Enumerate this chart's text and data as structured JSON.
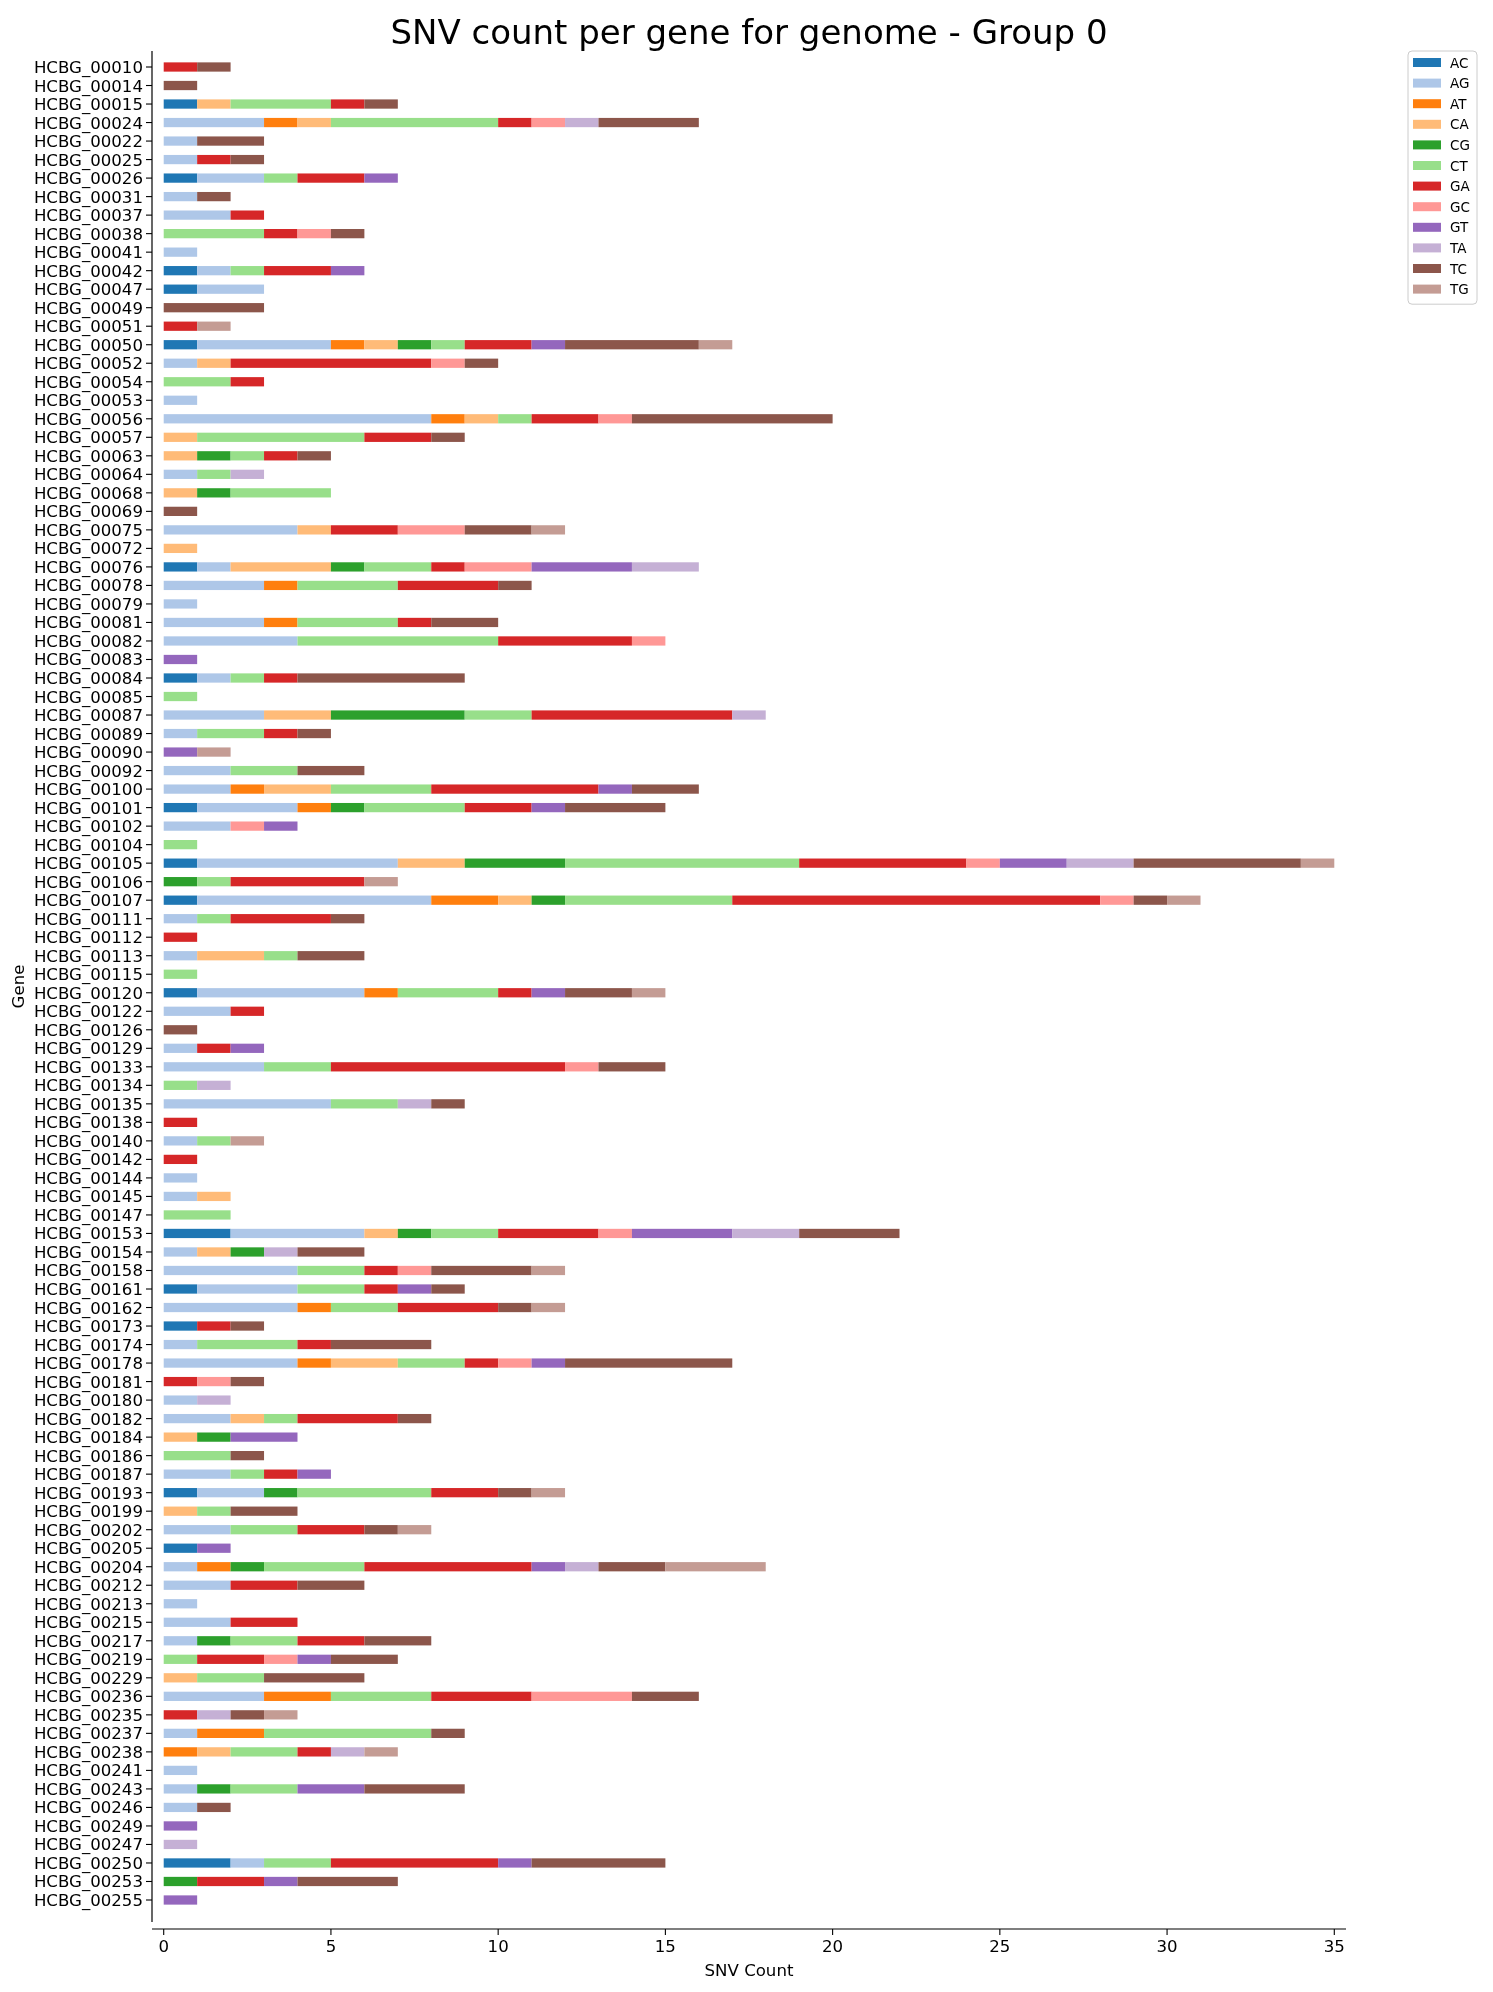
{
  "chart_data": {
    "type": "bar",
    "orientation": "horizontal",
    "stacked": true,
    "title": "SNV count per gene for genome - Group 0",
    "xlabel": "SNV Count",
    "ylabel": "Gene",
    "legend": "top right",
    "xlim": [
      -0.35,
      35.35
    ],
    "xticks": [
      0,
      5,
      10,
      15,
      20,
      25,
      30,
      35
    ],
    "categories": [
      "HCBG_00010",
      "HCBG_00014",
      "HCBG_00015",
      "HCBG_00024",
      "HCBG_00022",
      "HCBG_00025",
      "HCBG_00026",
      "HCBG_00031",
      "HCBG_00037",
      "HCBG_00038",
      "HCBG_00041",
      "HCBG_00042",
      "HCBG_00047",
      "HCBG_00049",
      "HCBG_00051",
      "HCBG_00050",
      "HCBG_00052",
      "HCBG_00054",
      "HCBG_00053",
      "HCBG_00056",
      "HCBG_00057",
      "HCBG_00063",
      "HCBG_00064",
      "HCBG_00068",
      "HCBG_00069",
      "HCBG_00075",
      "HCBG_00072",
      "HCBG_00076",
      "HCBG_00078",
      "HCBG_00079",
      "HCBG_00081",
      "HCBG_00082",
      "HCBG_00083",
      "HCBG_00084",
      "HCBG_00085",
      "HCBG_00087",
      "HCBG_00089",
      "HCBG_00090",
      "HCBG_00092",
      "HCBG_00100",
      "HCBG_00101",
      "HCBG_00102",
      "HCBG_00104",
      "HCBG_00105",
      "HCBG_00106",
      "HCBG_00107",
      "HCBG_00111",
      "HCBG_00112",
      "HCBG_00113",
      "HCBG_00115",
      "HCBG_00120",
      "HCBG_00122",
      "HCBG_00126",
      "HCBG_00129",
      "HCBG_00133",
      "HCBG_00134",
      "HCBG_00135",
      "HCBG_00138",
      "HCBG_00140",
      "HCBG_00142",
      "HCBG_00144",
      "HCBG_00145",
      "HCBG_00147",
      "HCBG_00153",
      "HCBG_00154",
      "HCBG_00158",
      "HCBG_00161",
      "HCBG_00162",
      "HCBG_00173",
      "HCBG_00174",
      "HCBG_00178",
      "HCBG_00181",
      "HCBG_00180",
      "HCBG_00182",
      "HCBG_00184",
      "HCBG_00186",
      "HCBG_00187",
      "HCBG_00193",
      "HCBG_00199",
      "HCBG_00202",
      "HCBG_00205",
      "HCBG_00204",
      "HCBG_00212",
      "HCBG_00213",
      "HCBG_00215",
      "HCBG_00217",
      "HCBG_00219",
      "HCBG_00229",
      "HCBG_00236",
      "HCBG_00235",
      "HCBG_00237",
      "HCBG_00238",
      "HCBG_00241",
      "HCBG_00243",
      "HCBG_00246",
      "HCBG_00249",
      "HCBG_00247",
      "HCBG_00250",
      "HCBG_00253",
      "HCBG_00255"
    ],
    "series": [
      {
        "name": "AC",
        "color": "#1f77b4",
        "values": [
          0,
          0,
          1,
          0,
          0,
          0,
          1,
          0,
          0,
          0,
          0,
          1,
          1,
          0,
          0,
          1,
          0,
          0,
          0,
          0,
          0,
          0,
          0,
          0,
          0,
          0,
          0,
          1,
          0,
          0,
          0,
          0,
          0,
          1,
          0,
          0,
          0,
          0,
          0,
          0,
          1,
          0,
          0,
          1,
          0,
          1,
          0,
          0,
          0,
          0,
          1,
          0,
          0,
          0,
          0,
          0,
          0,
          0,
          0,
          0,
          0,
          0,
          0,
          2,
          0,
          0,
          1,
          0,
          1,
          0,
          0,
          0,
          0,
          0,
          0,
          0,
          0,
          1,
          0,
          0,
          1,
          0,
          0,
          0,
          0,
          0,
          0,
          0,
          0,
          0,
          0,
          0,
          0,
          0,
          0,
          0,
          0,
          2,
          0,
          0
        ]
      },
      {
        "name": "AG",
        "color": "#aec7e8",
        "values": [
          0,
          0,
          0,
          3,
          1,
          1,
          2,
          1,
          2,
          0,
          1,
          1,
          2,
          0,
          0,
          4,
          1,
          0,
          1,
          8,
          0,
          0,
          1,
          0,
          0,
          4,
          0,
          1,
          3,
          1,
          3,
          4,
          0,
          1,
          0,
          3,
          1,
          0,
          2,
          2,
          3,
          2,
          0,
          6,
          0,
          7,
          1,
          0,
          1,
          0,
          5,
          2,
          0,
          1,
          3,
          0,
          5,
          0,
          1,
          0,
          1,
          1,
          0,
          4,
          1,
          4,
          3,
          4,
          0,
          1,
          4,
          0,
          1,
          2,
          0,
          0,
          2,
          2,
          0,
          2,
          0,
          1,
          2,
          1,
          2,
          1,
          0,
          0,
          3,
          0,
          1,
          0,
          1,
          1,
          1,
          0,
          0,
          1,
          0,
          0
        ]
      },
      {
        "name": "AT",
        "color": "#ff7f0e",
        "values": [
          0,
          0,
          0,
          1,
          0,
          0,
          0,
          0,
          0,
          0,
          0,
          0,
          0,
          0,
          0,
          1,
          0,
          0,
          0,
          1,
          0,
          0,
          0,
          0,
          0,
          0,
          0,
          0,
          1,
          0,
          1,
          0,
          0,
          0,
          0,
          0,
          0,
          0,
          0,
          1,
          1,
          0,
          0,
          0,
          0,
          2,
          0,
          0,
          0,
          0,
          1,
          0,
          0,
          0,
          0,
          0,
          0,
          0,
          0,
          0,
          0,
          0,
          0,
          0,
          0,
          0,
          0,
          1,
          0,
          0,
          1,
          0,
          0,
          0,
          0,
          0,
          0,
          0,
          0,
          0,
          0,
          1,
          0,
          0,
          0,
          0,
          0,
          0,
          2,
          0,
          2,
          1,
          0,
          0,
          0,
          0,
          0,
          0,
          0,
          0
        ]
      },
      {
        "name": "CA",
        "color": "#ffbb78",
        "values": [
          0,
          0,
          1,
          1,
          0,
          0,
          0,
          0,
          0,
          0,
          0,
          0,
          0,
          0,
          0,
          1,
          1,
          0,
          0,
          1,
          1,
          1,
          0,
          1,
          0,
          1,
          1,
          3,
          0,
          0,
          0,
          0,
          0,
          0,
          0,
          2,
          0,
          0,
          0,
          2,
          0,
          0,
          0,
          2,
          0,
          1,
          0,
          0,
          2,
          0,
          0,
          0,
          0,
          0,
          0,
          0,
          0,
          0,
          0,
          0,
          0,
          1,
          0,
          1,
          1,
          0,
          0,
          0,
          0,
          0,
          2,
          0,
          0,
          1,
          1,
          0,
          0,
          0,
          1,
          0,
          0,
          0,
          0,
          0,
          0,
          0,
          0,
          1,
          0,
          0,
          0,
          1,
          0,
          0,
          0,
          0,
          0,
          0,
          0,
          0
        ]
      },
      {
        "name": "CG",
        "color": "#2ca02c",
        "values": [
          0,
          0,
          0,
          0,
          0,
          0,
          0,
          0,
          0,
          0,
          0,
          0,
          0,
          0,
          0,
          1,
          0,
          0,
          0,
          0,
          0,
          1,
          0,
          1,
          0,
          0,
          0,
          1,
          0,
          0,
          0,
          0,
          0,
          0,
          0,
          4,
          0,
          0,
          0,
          0,
          1,
          0,
          0,
          3,
          1,
          1,
          0,
          0,
          0,
          0,
          0,
          0,
          0,
          0,
          0,
          0,
          0,
          0,
          0,
          0,
          0,
          0,
          0,
          1,
          1,
          0,
          0,
          0,
          0,
          0,
          0,
          0,
          0,
          0,
          1,
          0,
          0,
          1,
          0,
          0,
          0,
          1,
          0,
          0,
          0,
          1,
          0,
          0,
          0,
          0,
          0,
          0,
          0,
          1,
          0,
          0,
          0,
          0,
          1,
          0
        ]
      },
      {
        "name": "CT",
        "color": "#98df8a",
        "values": [
          0,
          0,
          3,
          5,
          0,
          0,
          1,
          0,
          0,
          3,
          0,
          1,
          0,
          0,
          0,
          1,
          0,
          2,
          0,
          1,
          5,
          1,
          1,
          3,
          0,
          0,
          0,
          2,
          3,
          0,
          3,
          6,
          0,
          1,
          1,
          2,
          2,
          0,
          2,
          3,
          3,
          0,
          1,
          7,
          1,
          5,
          1,
          0,
          1,
          1,
          3,
          0,
          0,
          0,
          2,
          1,
          2,
          0,
          1,
          0,
          0,
          0,
          2,
          2,
          0,
          2,
          2,
          2,
          0,
          3,
          2,
          0,
          0,
          1,
          0,
          2,
          1,
          4,
          1,
          2,
          0,
          3,
          0,
          0,
          0,
          2,
          1,
          2,
          3,
          0,
          5,
          2,
          0,
          2,
          0,
          0,
          0,
          2,
          0,
          0
        ]
      },
      {
        "name": "GA",
        "color": "#d62728",
        "values": [
          1,
          0,
          1,
          1,
          0,
          1,
          2,
          0,
          1,
          1,
          0,
          2,
          0,
          0,
          1,
          2,
          6,
          1,
          0,
          2,
          2,
          1,
          0,
          0,
          0,
          2,
          0,
          1,
          3,
          0,
          1,
          4,
          0,
          1,
          0,
          6,
          1,
          0,
          0,
          5,
          2,
          0,
          0,
          5,
          4,
          11,
          3,
          1,
          0,
          0,
          1,
          1,
          0,
          1,
          7,
          0,
          0,
          1,
          0,
          1,
          0,
          0,
          0,
          3,
          0,
          1,
          1,
          3,
          1,
          1,
          1,
          1,
          0,
          3,
          0,
          0,
          1,
          2,
          0,
          2,
          0,
          5,
          2,
          0,
          2,
          2,
          2,
          0,
          3,
          1,
          0,
          1,
          0,
          0,
          0,
          0,
          0,
          5,
          2,
          0
        ]
      },
      {
        "name": "GC",
        "color": "#ff9896",
        "values": [
          0,
          0,
          0,
          1,
          0,
          0,
          0,
          0,
          0,
          1,
          0,
          0,
          0,
          0,
          0,
          0,
          1,
          0,
          0,
          1,
          0,
          0,
          0,
          0,
          0,
          2,
          0,
          2,
          0,
          0,
          0,
          1,
          0,
          0,
          0,
          0,
          0,
          0,
          0,
          0,
          0,
          1,
          0,
          1,
          0,
          1,
          0,
          0,
          0,
          0,
          0,
          0,
          0,
          0,
          1,
          0,
          0,
          0,
          0,
          0,
          0,
          0,
          0,
          1,
          0,
          1,
          0,
          0,
          0,
          0,
          1,
          1,
          0,
          0,
          0,
          0,
          0,
          0,
          0,
          0,
          0,
          0,
          0,
          0,
          0,
          0,
          1,
          0,
          3,
          0,
          0,
          0,
          0,
          0,
          0,
          0,
          0,
          0,
          0,
          0
        ]
      },
      {
        "name": "GT",
        "color": "#9467bd",
        "values": [
          0,
          0,
          0,
          0,
          0,
          0,
          1,
          0,
          0,
          0,
          0,
          1,
          0,
          0,
          0,
          1,
          0,
          0,
          0,
          0,
          0,
          0,
          0,
          0,
          0,
          0,
          0,
          3,
          0,
          0,
          0,
          0,
          1,
          0,
          0,
          0,
          0,
          1,
          0,
          1,
          1,
          1,
          0,
          2,
          0,
          0,
          0,
          0,
          0,
          0,
          1,
          0,
          0,
          1,
          0,
          0,
          0,
          0,
          0,
          0,
          0,
          0,
          0,
          3,
          0,
          0,
          1,
          0,
          0,
          0,
          1,
          0,
          0,
          0,
          2,
          0,
          1,
          0,
          0,
          0,
          1,
          1,
          0,
          0,
          0,
          0,
          1,
          0,
          0,
          0,
          0,
          0,
          0,
          2,
          0,
          1,
          0,
          1,
          1,
          1
        ]
      },
      {
        "name": "TA",
        "color": "#c5b0d5",
        "values": [
          0,
          0,
          0,
          1,
          0,
          0,
          0,
          0,
          0,
          0,
          0,
          0,
          0,
          0,
          0,
          0,
          0,
          0,
          0,
          0,
          0,
          0,
          1,
          0,
          0,
          0,
          0,
          2,
          0,
          0,
          0,
          0,
          0,
          0,
          0,
          1,
          0,
          0,
          0,
          0,
          0,
          0,
          0,
          2,
          0,
          0,
          0,
          0,
          0,
          0,
          0,
          0,
          0,
          0,
          0,
          1,
          1,
          0,
          0,
          0,
          0,
          0,
          0,
          2,
          1,
          0,
          0,
          0,
          0,
          0,
          0,
          0,
          1,
          0,
          0,
          0,
          0,
          0,
          0,
          0,
          0,
          1,
          0,
          0,
          0,
          0,
          0,
          0,
          0,
          1,
          0,
          1,
          0,
          0,
          0,
          0,
          1,
          0,
          0,
          0
        ]
      },
      {
        "name": "TC",
        "color": "#8c564b",
        "values": [
          1,
          1,
          1,
          3,
          2,
          1,
          0,
          1,
          0,
          1,
          0,
          0,
          0,
          3,
          0,
          4,
          1,
          0,
          0,
          6,
          1,
          1,
          0,
          0,
          1,
          2,
          0,
          0,
          1,
          0,
          2,
          0,
          0,
          5,
          0,
          0,
          1,
          0,
          2,
          2,
          3,
          0,
          0,
          5,
          0,
          1,
          1,
          0,
          2,
          0,
          2,
          0,
          1,
          0,
          2,
          0,
          1,
          0,
          0,
          0,
          0,
          0,
          0,
          3,
          2,
          3,
          1,
          1,
          1,
          3,
          5,
          1,
          0,
          1,
          0,
          1,
          0,
          1,
          2,
          1,
          0,
          2,
          2,
          0,
          0,
          2,
          2,
          3,
          2,
          1,
          1,
          0,
          0,
          3,
          1,
          0,
          0,
          4,
          3,
          0
        ]
      },
      {
        "name": "TG",
        "color": "#c49c94",
        "values": [
          0,
          0,
          0,
          0,
          0,
          0,
          0,
          0,
          0,
          0,
          0,
          0,
          0,
          0,
          1,
          1,
          0,
          0,
          0,
          0,
          0,
          0,
          0,
          0,
          0,
          1,
          0,
          0,
          0,
          0,
          0,
          0,
          0,
          0,
          0,
          0,
          0,
          1,
          0,
          0,
          0,
          0,
          0,
          1,
          1,
          1,
          0,
          0,
          0,
          0,
          1,
          0,
          0,
          0,
          0,
          0,
          0,
          0,
          1,
          0,
          0,
          0,
          0,
          0,
          0,
          1,
          0,
          1,
          0,
          0,
          0,
          0,
          0,
          0,
          0,
          0,
          0,
          1,
          0,
          1,
          0,
          3,
          0,
          0,
          0,
          0,
          0,
          0,
          0,
          1,
          0,
          1,
          0,
          0,
          0,
          0,
          0,
          0,
          0,
          0
        ]
      }
    ]
  }
}
